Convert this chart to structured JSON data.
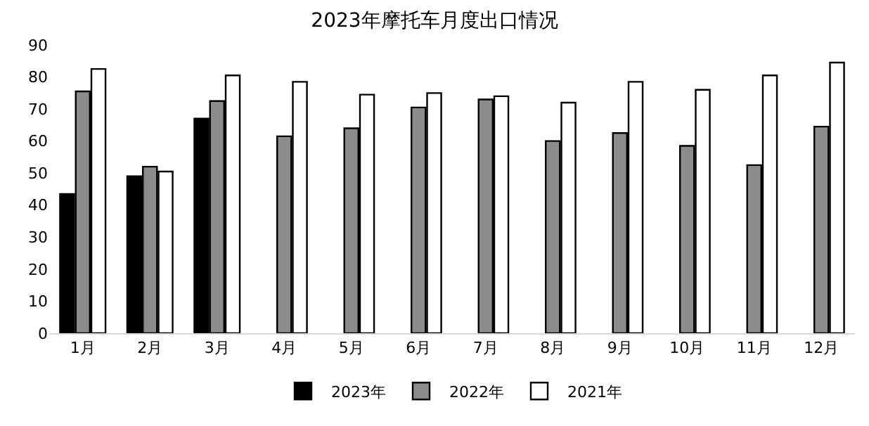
{
  "chart_data": {
    "type": "bar",
    "title": "2023年摩托车月度出口情况",
    "categories": [
      "1月",
      "2月",
      "3月",
      "4月",
      "5月",
      "6月",
      "7月",
      "8月",
      "9月",
      "10月",
      "11月",
      "12月"
    ],
    "series": [
      {
        "name": "2023年",
        "color": "#000000",
        "values": [
          43.5,
          49,
          67,
          null,
          null,
          null,
          null,
          null,
          null,
          null,
          null,
          null
        ]
      },
      {
        "name": "2022年",
        "color": "#8c8c8c",
        "values": [
          75.5,
          52,
          72.5,
          61.5,
          64,
          70.5,
          73,
          60,
          62.5,
          58.5,
          52.5,
          64.5
        ]
      },
      {
        "name": "2021年",
        "color": "#ffffff",
        "values": [
          82.5,
          50.5,
          80.5,
          78.5,
          74.5,
          75,
          74,
          72,
          78.5,
          76,
          80.5,
          84.5
        ]
      }
    ],
    "ylim": [
      0,
      90
    ],
    "yticks": [
      0,
      10,
      20,
      30,
      40,
      50,
      60,
      70,
      80,
      90
    ],
    "grid": false,
    "legend": "bottom"
  }
}
